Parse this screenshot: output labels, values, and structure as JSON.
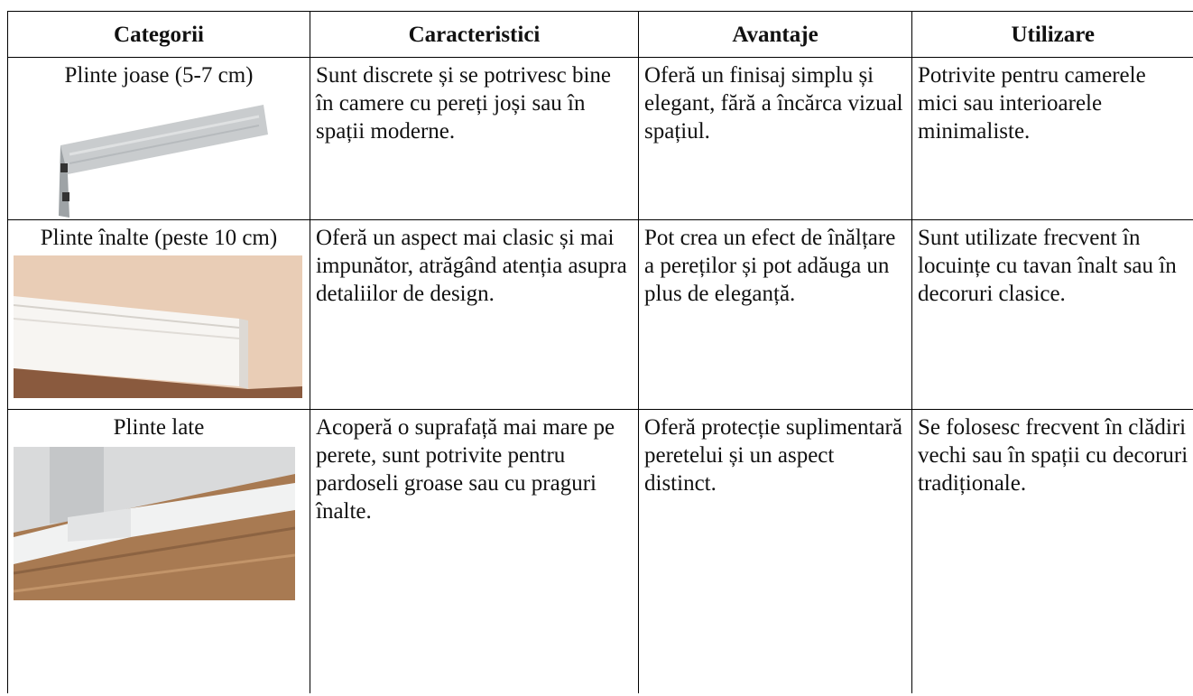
{
  "table": {
    "header": [
      "Categorii",
      "Caracteristici",
      "Avantaje",
      "Utilizare"
    ],
    "rows": [
      [
        "Plinte joase (5-7 cm)",
        "Sunt discrete și se potrivesc bine în camere cu pereți joși sau în spații moderne.",
        "Oferă un finisaj simplu și elegant, fără a încărca vizual spațiul.",
        "Potrivite pentru camerele mici sau interioarele minimaliste."
      ],
      [
        "Plinte înalte (peste 10 cm)",
        "Oferă un aspect mai clasic și mai impunător, atrăgând atenția asupra detaliilor de design.",
        "Pot crea un efect de înălțare a pereților și pot adăuga un plus de eleganță.",
        "Sunt utilizate frecvent în locuințe cu tavan înalt sau în decoruri clasice."
      ],
      [
        "Plinte late",
        "Acoperă o suprafață mai mare pe perete, sunt potrivite pentru pardoseli groase sau cu praguri înalte.",
        "Oferă protecție suplimentară peretelui și un aspect distinct.",
        "Se folosesc frecvent în clădiri vechi sau în spații cu decoruri tradiționale."
      ]
    ]
  }
}
